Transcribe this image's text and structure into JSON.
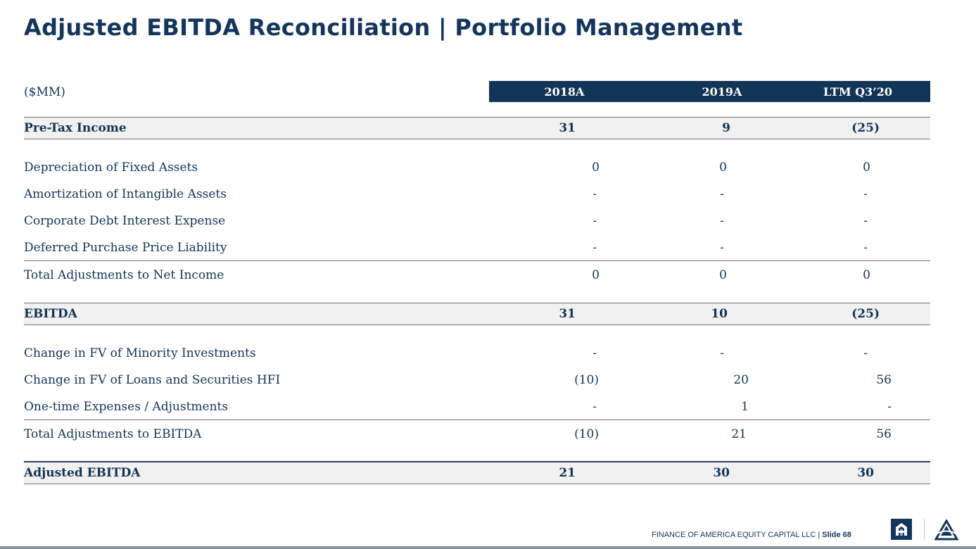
{
  "title": "Adjusted EBITDA Reconciliation | Portfolio Management",
  "table": {
    "unit_label": "($MM)",
    "columns": [
      "2018A",
      "2019A",
      "LTM Q3’20"
    ],
    "rows": [
      {
        "label": "Pre-Tax Income",
        "values": [
          "31",
          "9",
          "(25)"
        ]
      },
      {
        "label": "Depreciation of Fixed Assets",
        "values": [
          "0",
          "0",
          "0"
        ]
      },
      {
        "label": "Amortization of Intangible Assets",
        "values": [
          "-",
          "-",
          "-"
        ]
      },
      {
        "label": "Corporate Debt Interest Expense",
        "values": [
          "-",
          "-",
          "-"
        ]
      },
      {
        "label": "Deferred Purchase Price Liability",
        "values": [
          "-",
          "-",
          "-"
        ]
      },
      {
        "label": "Total Adjustments to Net Income",
        "values": [
          "0",
          "0",
          "0"
        ]
      },
      {
        "label": "EBITDA",
        "values": [
          "31",
          "10",
          "(25)"
        ]
      },
      {
        "label": "Change in FV of Minority Investments",
        "values": [
          "-",
          "-",
          "-"
        ]
      },
      {
        "label": "Change in FV of Loans and Securities HFI",
        "values": [
          "(10)",
          "20",
          "56"
        ]
      },
      {
        "label": "One-time Expenses / Adjustments",
        "values": [
          "-",
          "1",
          "-"
        ]
      },
      {
        "label": "Total Adjustments to EBITDA",
        "values": [
          "(10)",
          "21",
          "56"
        ]
      },
      {
        "label": "Adjusted EBITDA",
        "values": [
          "21",
          "30",
          "30"
        ]
      }
    ]
  },
  "footer": {
    "company": "FINANCE OF AMERICA EQUITY CAPITAL LLC",
    "separator": " | ",
    "slide": "Slide 68"
  },
  "colors": {
    "navy": "#123457",
    "shade": "#f1f1f1"
  },
  "icons": [
    "foa-logo-icon",
    "triangle-logo-icon"
  ]
}
